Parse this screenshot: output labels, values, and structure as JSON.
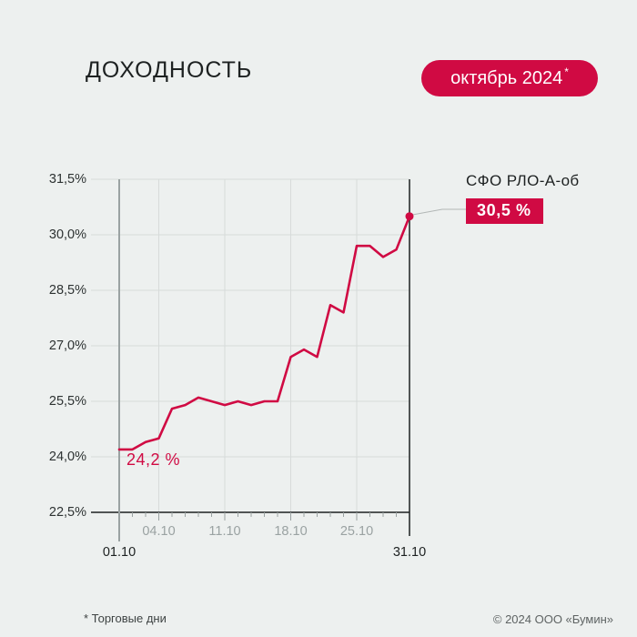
{
  "header": {
    "title": "ДОХОДНОСТЬ",
    "period": "октябрь 2024",
    "period_marker": "*"
  },
  "chart_data": {
    "type": "line",
    "title": "ДОХОДНОСТЬ",
    "period": "октябрь 2024",
    "series_name": "СФО РЛО-А-об",
    "unit": "%",
    "x": [
      "01.10",
      "02.10",
      "03.10",
      "04.10",
      "07.10",
      "08.10",
      "09.10",
      "10.10",
      "11.10",
      "14.10",
      "15.10",
      "16.10",
      "17.10",
      "18.10",
      "21.10",
      "22.10",
      "23.10",
      "24.10",
      "25.10",
      "28.10",
      "29.10",
      "30.10",
      "31.10"
    ],
    "values": [
      24.2,
      24.2,
      24.4,
      24.5,
      25.3,
      25.4,
      25.6,
      25.5,
      25.4,
      25.5,
      25.4,
      25.5,
      25.5,
      26.7,
      26.9,
      26.7,
      28.1,
      27.9,
      29.7,
      29.7,
      29.4,
      29.6,
      30.5
    ],
    "ylim": [
      22.5,
      31.5
    ],
    "y_ticks": [
      "31,5%",
      "30,0%",
      "28,5%",
      "27,0%",
      "25,5%",
      "24,0%",
      "22,5%"
    ],
    "y_tick_values": [
      31.5,
      30.0,
      28.5,
      27.0,
      25.5,
      24.0,
      22.5
    ],
    "x_tick_labels": [
      "04.10",
      "11.10",
      "18.10",
      "25.10"
    ],
    "x_edge_labels": [
      "01.10",
      "31.10"
    ],
    "start_label": "24,2 %",
    "end_label": "30,5 %",
    "grid": true,
    "legend_position": "annotation-right",
    "line_color": "#d00a43"
  },
  "footer": {
    "note": "* Торговые дни",
    "copyright": "© 2024 ООО «Бумин»"
  },
  "colors": {
    "accent": "#d00a43",
    "background": "#edf0ef",
    "text": "#1d2121",
    "muted": "#9aa2a2",
    "gridline": "#d7dbda",
    "badge_text": "#ffffff"
  }
}
